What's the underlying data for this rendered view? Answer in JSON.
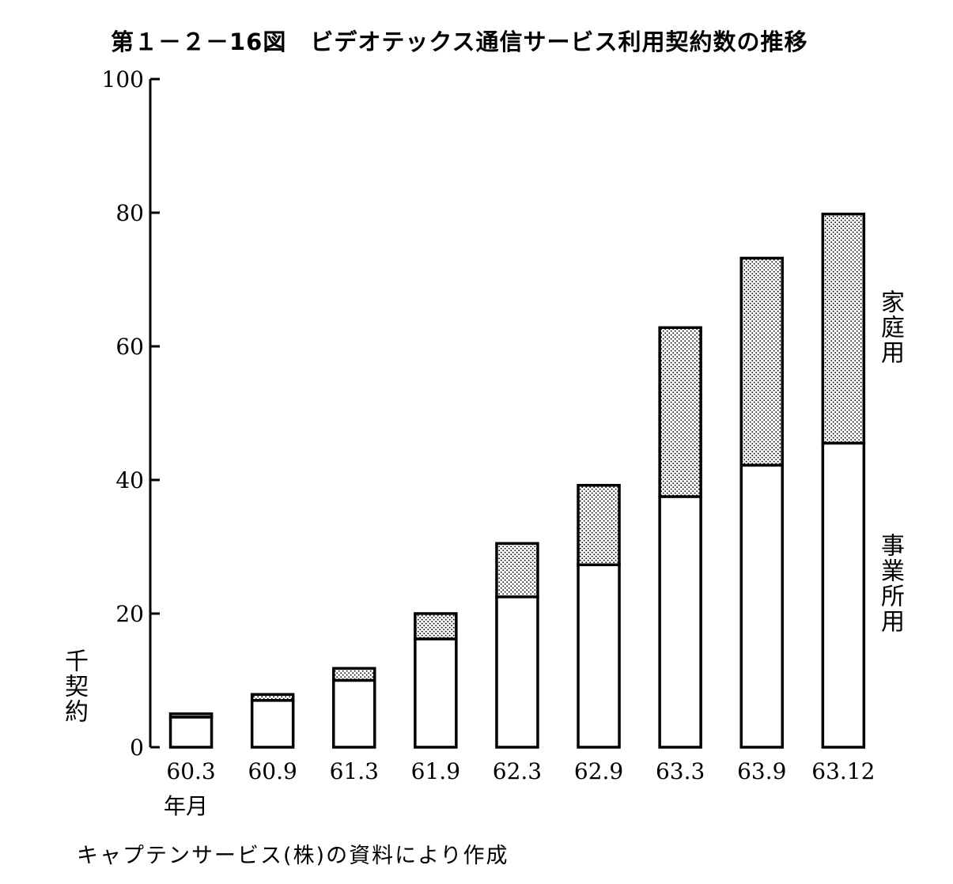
{
  "title": "第１－２－16図　ビデオテックス通信サービス利用契約数の推移",
  "y_unit_label": "千契約",
  "x_unit_label": "年月",
  "source": "キャプテンサービス(株)の資料により作成",
  "legend": {
    "home": "家庭用",
    "business": "事業所用"
  },
  "colors": {
    "bar_outline": "#000000",
    "business_fill": "#ffffff",
    "home_fill": "dotted-stipple"
  },
  "chart_data": {
    "type": "bar",
    "stacked": true,
    "categories": [
      "60.3",
      "60.9",
      "61.3",
      "61.9",
      "62.3",
      "62.9",
      "63.3",
      "63.9",
      "63.12"
    ],
    "series": [
      {
        "name": "事業所用",
        "values": [
          4.5,
          7.0,
          10.0,
          16.2,
          22.5,
          27.3,
          37.5,
          42.2,
          45.5
        ]
      },
      {
        "name": "家庭用",
        "values": [
          0.5,
          0.9,
          1.8,
          3.8,
          8.0,
          11.9,
          25.3,
          31.0,
          34.3
        ]
      }
    ],
    "yticks": [
      "0",
      "20",
      "40",
      "60",
      "80",
      "100"
    ],
    "ylim": [
      0,
      100
    ],
    "xlabel": "年月",
    "ylabel": "千契約",
    "grid": false
  }
}
